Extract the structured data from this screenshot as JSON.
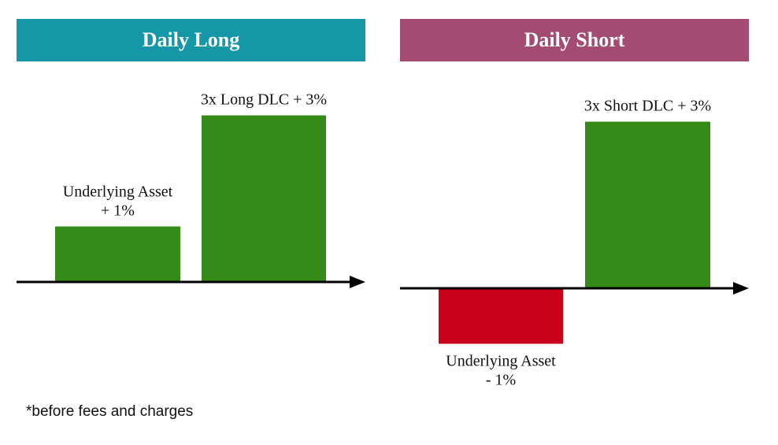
{
  "colors": {
    "long_header": "#1597a7",
    "short_header": "#a34b72",
    "positive_bar": "#338a17",
    "negative_bar": "#c8001a",
    "axis": "#000000"
  },
  "chart_data": [
    {
      "type": "bar",
      "title": "Daily Long",
      "categories": [
        "Underlying Asset",
        "3x Long DLC"
      ],
      "values": [
        1,
        3
      ],
      "labels": [
        [
          "Underlying Asset",
          "+ 1%"
        ],
        [
          "3x Long DLC  + 3%"
        ]
      ],
      "units": "%",
      "ylim": [
        0,
        3.4
      ],
      "grid": false
    },
    {
      "type": "bar",
      "title": "Daily Short",
      "categories": [
        "Underlying Asset",
        "3x Short DLC"
      ],
      "values": [
        -1,
        3
      ],
      "labels": [
        [
          "Underlying Asset",
          "- 1%"
        ],
        [
          "3x Short DLC  + 3%"
        ]
      ],
      "units": "%",
      "ylim": [
        -1.1,
        3.4
      ],
      "grid": false
    }
  ],
  "footnote": "*before fees and charges"
}
